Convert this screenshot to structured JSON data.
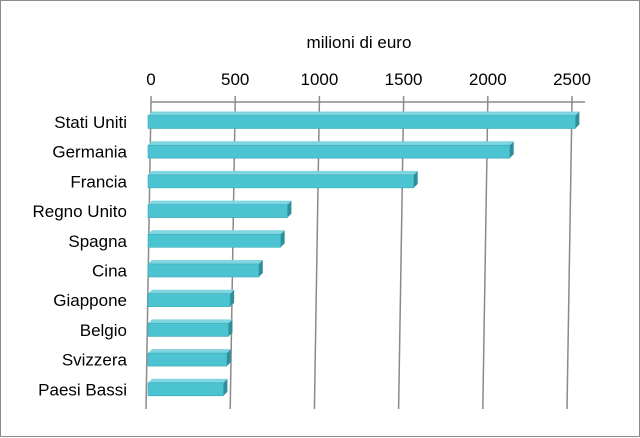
{
  "chart_data": {
    "type": "bar",
    "orientation": "horizontal",
    "title": "milioni di euro",
    "xlabel": "milioni di euro",
    "ylabel": "",
    "axis_position": "top",
    "ticks": [
      "0",
      "500",
      "1000",
      "1500",
      "2000",
      "2500"
    ],
    "xlim": [
      0,
      2500
    ],
    "grid": true,
    "legend": "none",
    "bar_color": "#4BC3D1",
    "bar_edge_color": "#2E8E9A",
    "grid_color": "#8a8a8a",
    "categories": [
      "Stati Uniti",
      "Germania",
      "Francia",
      "Regno Unito",
      "Spagna",
      "Cina",
      "Giappone",
      "Belgio",
      "Svizzera",
      "Paesi Bassi"
    ],
    "values": [
      2520,
      2130,
      1560,
      810,
      770,
      640,
      470,
      460,
      450,
      430
    ]
  }
}
